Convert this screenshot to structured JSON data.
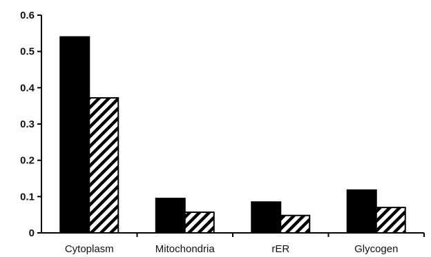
{
  "chart_data": {
    "type": "bar",
    "title": "",
    "xlabel": "",
    "ylabel": "",
    "categories": [
      "Cytoplasm",
      "Mitochondria",
      "rER",
      "Glycogen"
    ],
    "series": [
      {
        "values": [
          0.54,
          0.095,
          0.085,
          0.118
        ],
        "fill": "solid",
        "color": "#000000"
      },
      {
        "values": [
          0.372,
          0.057,
          0.048,
          0.07
        ],
        "fill": "diagonal-hatch",
        "color": "#000000"
      }
    ],
    "ylim": [
      0,
      0.6
    ],
    "yticks": [
      "0",
      "0.1",
      "0.2",
      "0.3",
      "0.4",
      "0.5",
      "0.6"
    ],
    "grid": false,
    "legend": "none"
  }
}
